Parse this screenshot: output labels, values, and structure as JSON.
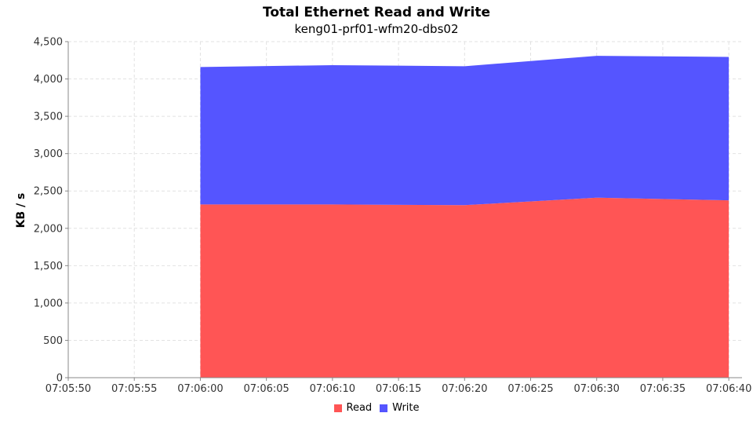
{
  "chart_data": {
    "type": "area",
    "stacked": true,
    "title": "Total Ethernet Read and Write",
    "subtitle": "keng01-prf01-wfm20-dbs02",
    "xlabel": "",
    "ylabel": "KB / s",
    "ylim": [
      0,
      4500
    ],
    "yticks": [
      0,
      500,
      1000,
      1500,
      2000,
      2500,
      3000,
      3500,
      4000,
      4500
    ],
    "ytick_labels": [
      "0",
      "500",
      "1,000",
      "1,500",
      "2,000",
      "2,500",
      "3,000",
      "3,500",
      "4,000",
      "4,500"
    ],
    "xlim": [
      -10,
      41
    ],
    "xticks": [
      -10,
      -5,
      0,
      5,
      10,
      15,
      20,
      25,
      30,
      35,
      40
    ],
    "xtick_labels": [
      "07:05:50",
      "07:05:55",
      "07:06:00",
      "07:06:05",
      "07:06:10",
      "07:06:15",
      "07:06:20",
      "07:06:25",
      "07:06:30",
      "07:06:35",
      "07:06:40"
    ],
    "grid": true,
    "legend": "bottom-center",
    "x": [
      0,
      10,
      20,
      30,
      40
    ],
    "series": [
      {
        "name": "Read",
        "color": "#ff5555",
        "values": [
          2320,
          2320,
          2310,
          2410,
          2375
        ]
      },
      {
        "name": "Write",
        "color": "#5555ff",
        "values": [
          1840,
          1865,
          1860,
          1900,
          1920
        ]
      }
    ]
  }
}
